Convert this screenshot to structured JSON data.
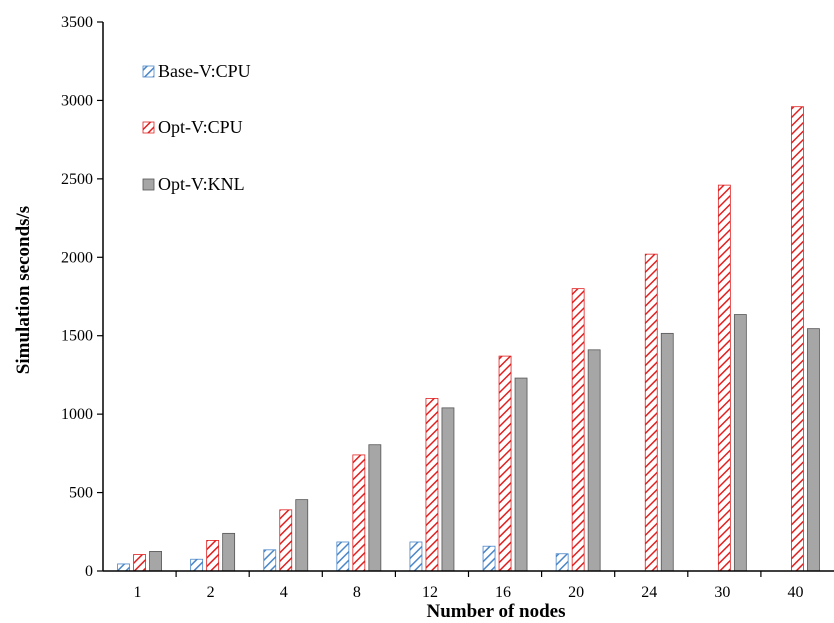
{
  "chart_data": {
    "type": "bar",
    "xlabel": "Number of nodes",
    "ylabel": "Simulation seconds/s",
    "ylim": [
      0,
      3500
    ],
    "yticks": [
      0,
      500,
      1000,
      1500,
      2000,
      2500,
      3000,
      3500
    ],
    "categories": [
      "1",
      "2",
      "4",
      "8",
      "12",
      "16",
      "20",
      "24",
      "30",
      "40"
    ],
    "grid": false,
    "legend_position": "top-left",
    "series": [
      {
        "name": "Base-V:CPU",
        "pattern": "hatch",
        "color": "#4a86c8",
        "values": [
          45,
          75,
          135,
          185,
          185,
          158,
          110,
          null,
          null,
          null
        ]
      },
      {
        "name": "Opt-V:CPU",
        "pattern": "hatch",
        "color": "#e02020",
        "values": [
          105,
          195,
          390,
          740,
          1100,
          1370,
          1800,
          2020,
          2460,
          2960
        ]
      },
      {
        "name": "Opt-V:KNL",
        "pattern": "solid",
        "color": "#a6a6a6",
        "values": [
          125,
          240,
          455,
          805,
          1040,
          1230,
          1410,
          1515,
          1635,
          1545
        ]
      }
    ]
  }
}
